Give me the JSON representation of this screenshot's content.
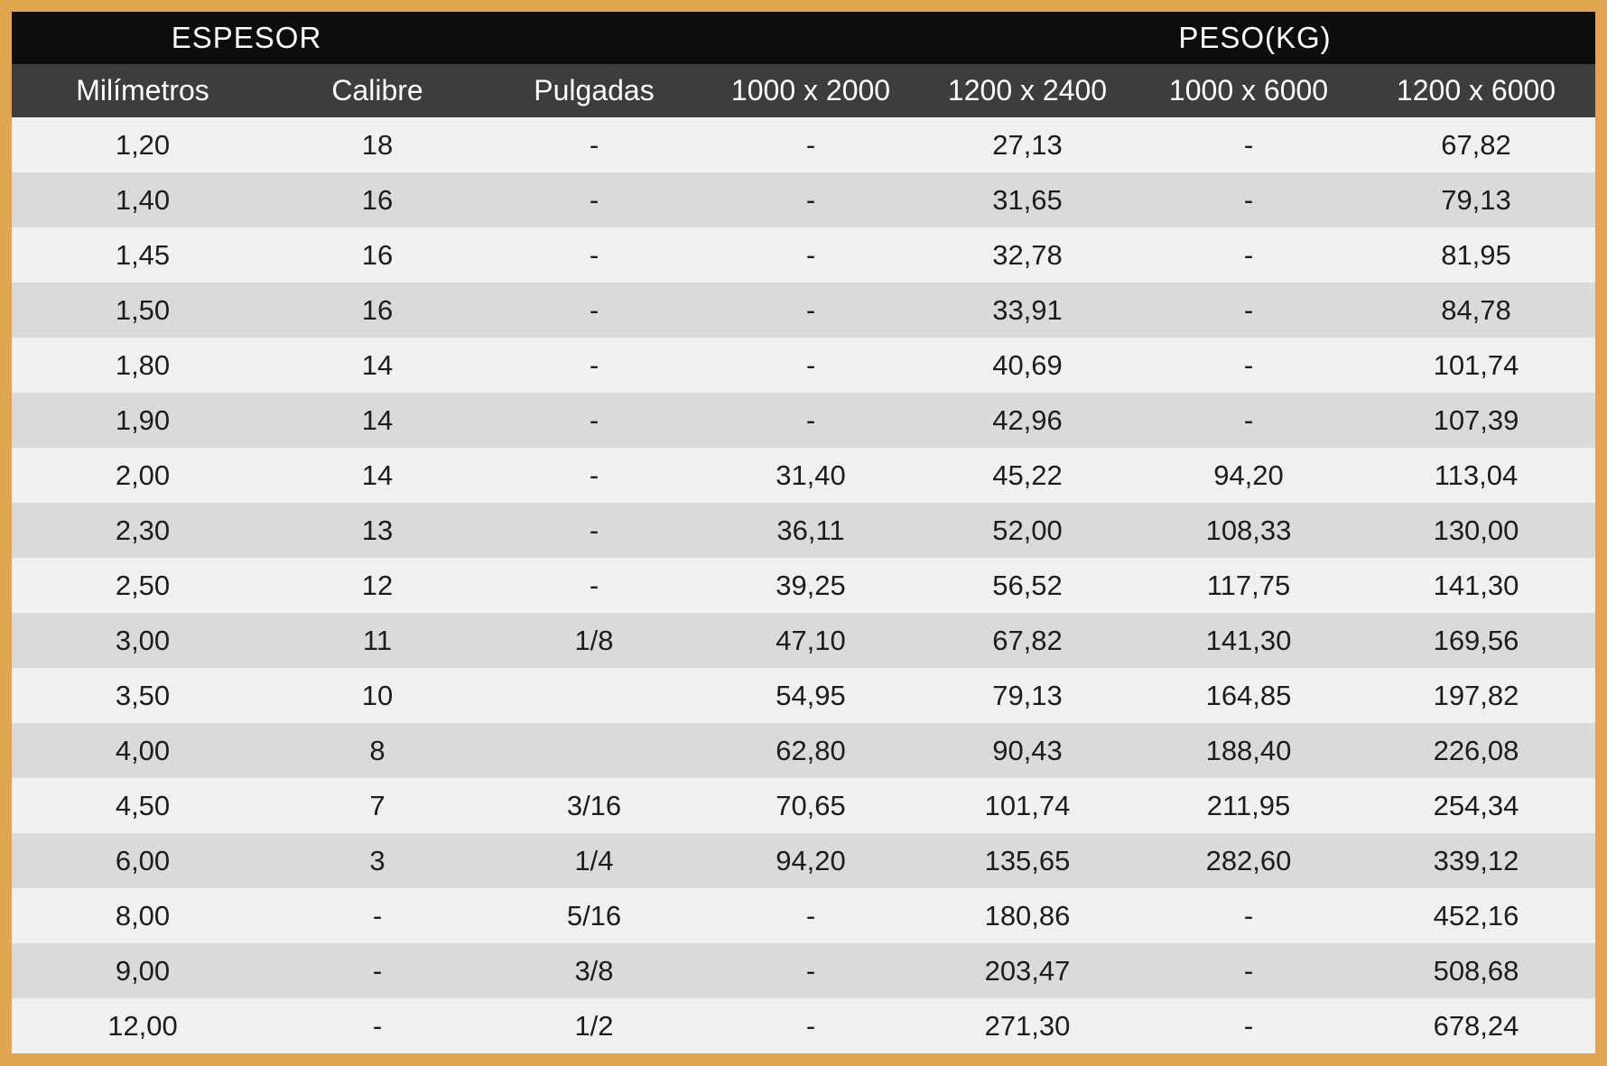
{
  "table": {
    "group_headers": [
      {
        "label": "ESPESOR",
        "span": 2
      },
      {
        "label": "",
        "span": 2
      },
      {
        "label": "PESO(KG)",
        "span": 3
      }
    ],
    "columns": [
      "Milímetros",
      "Calibre",
      "Pulgadas",
      "1000 x 2000",
      "1200 x 2400",
      "1000 x 6000",
      "1200 x 6000"
    ],
    "rows": [
      [
        "1,20",
        "18",
        "-",
        "-",
        "27,13",
        "-",
        "67,82"
      ],
      [
        "1,40",
        "16",
        "-",
        "-",
        "31,65",
        "-",
        "79,13"
      ],
      [
        "1,45",
        "16",
        "-",
        "-",
        "32,78",
        "-",
        "81,95"
      ],
      [
        "1,50",
        "16",
        "-",
        "-",
        "33,91",
        "-",
        "84,78"
      ],
      [
        "1,80",
        "14",
        "-",
        "-",
        "40,69",
        "-",
        "101,74"
      ],
      [
        "1,90",
        "14",
        "-",
        "-",
        "42,96",
        "-",
        "107,39"
      ],
      [
        "2,00",
        "14",
        "-",
        "31,40",
        "45,22",
        "94,20",
        "113,04"
      ],
      [
        "2,30",
        "13",
        "-",
        "36,11",
        "52,00",
        "108,33",
        "130,00"
      ],
      [
        "2,50",
        "12",
        "-",
        "39,25",
        "56,52",
        "117,75",
        "141,30"
      ],
      [
        "3,00",
        "11",
        "1/8",
        "47,10",
        "67,82",
        "141,30",
        "169,56"
      ],
      [
        "3,50",
        "10",
        "",
        "54,95",
        "79,13",
        "164,85",
        "197,82"
      ],
      [
        "4,00",
        "8",
        "",
        "62,80",
        "90,43",
        "188,40",
        "226,08"
      ],
      [
        "4,50",
        "7",
        "3/16",
        "70,65",
        "101,74",
        "211,95",
        "254,34"
      ],
      [
        "6,00",
        "3",
        "1/4",
        "94,20",
        "135,65",
        "282,60",
        "339,12"
      ],
      [
        "8,00",
        "-",
        "5/16",
        "-",
        "180,86",
        "-",
        "452,16"
      ],
      [
        "9,00",
        "-",
        "3/8",
        "-",
        "203,47",
        "-",
        "508,68"
      ],
      [
        "12,00",
        "-",
        "1/2",
        "-",
        "271,30",
        "-",
        "678,24"
      ]
    ]
  },
  "colors": {
    "border": "#e0a54f",
    "group_header_bg": "#0d0d0d",
    "column_header_bg": "#3d3d3b",
    "row_light": "#f0f0f0",
    "row_dark": "#dadada",
    "text": "#1c1c1c"
  }
}
